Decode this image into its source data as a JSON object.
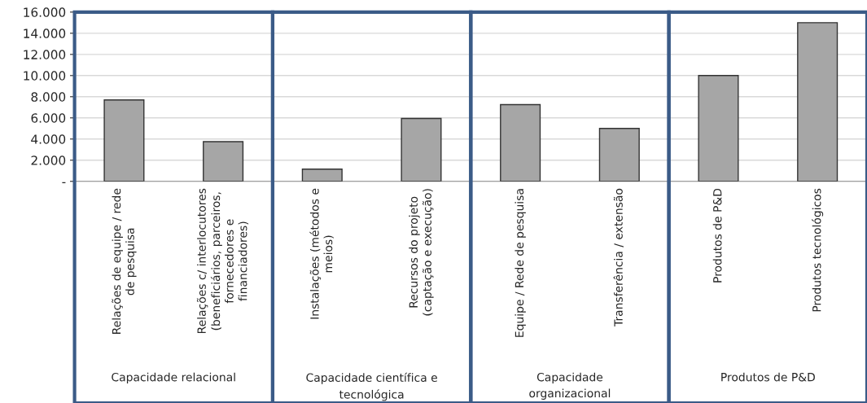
{
  "chart_data": {
    "type": "bar",
    "categories": [
      "Relações de equipe / rede\nde pesquisa",
      "Relações c/ interlocutores\n(beneficiários, parceiros,\nfornecedores e\nfinanciadores)",
      "Instalações (métodos e\nmeios)",
      "Recursos do projeto\n(captação e execução)",
      "Equipe / Rede de pesquisa",
      "Transferência / extensão",
      "Produtos de P&D",
      "Produtos tecnológicos"
    ],
    "values": [
      7700,
      3750,
      1150,
      5950,
      7250,
      5000,
      10000,
      15000
    ],
    "color": "#a6a6a6",
    "ylim": [
      0,
      16000
    ],
    "yticks": [
      {
        "value": 0,
        "label": "-"
      },
      {
        "value": 2000,
        "label": "2.000"
      },
      {
        "value": 4000,
        "label": "4.000"
      },
      {
        "value": 6000,
        "label": "6.000"
      },
      {
        "value": 8000,
        "label": "8.000"
      },
      {
        "value": 10000,
        "label": "10.000"
      },
      {
        "value": 12000,
        "label": "12.000"
      },
      {
        "value": 14000,
        "label": "14.000"
      },
      {
        "value": 16000,
        "label": "16.000"
      }
    ],
    "grid": "y",
    "annotations": [
      "Capacidade relacional",
      "Capacidade científica e\ntecnológica",
      "Capacidade\norganizacional",
      "Produtos de P&D"
    ]
  }
}
